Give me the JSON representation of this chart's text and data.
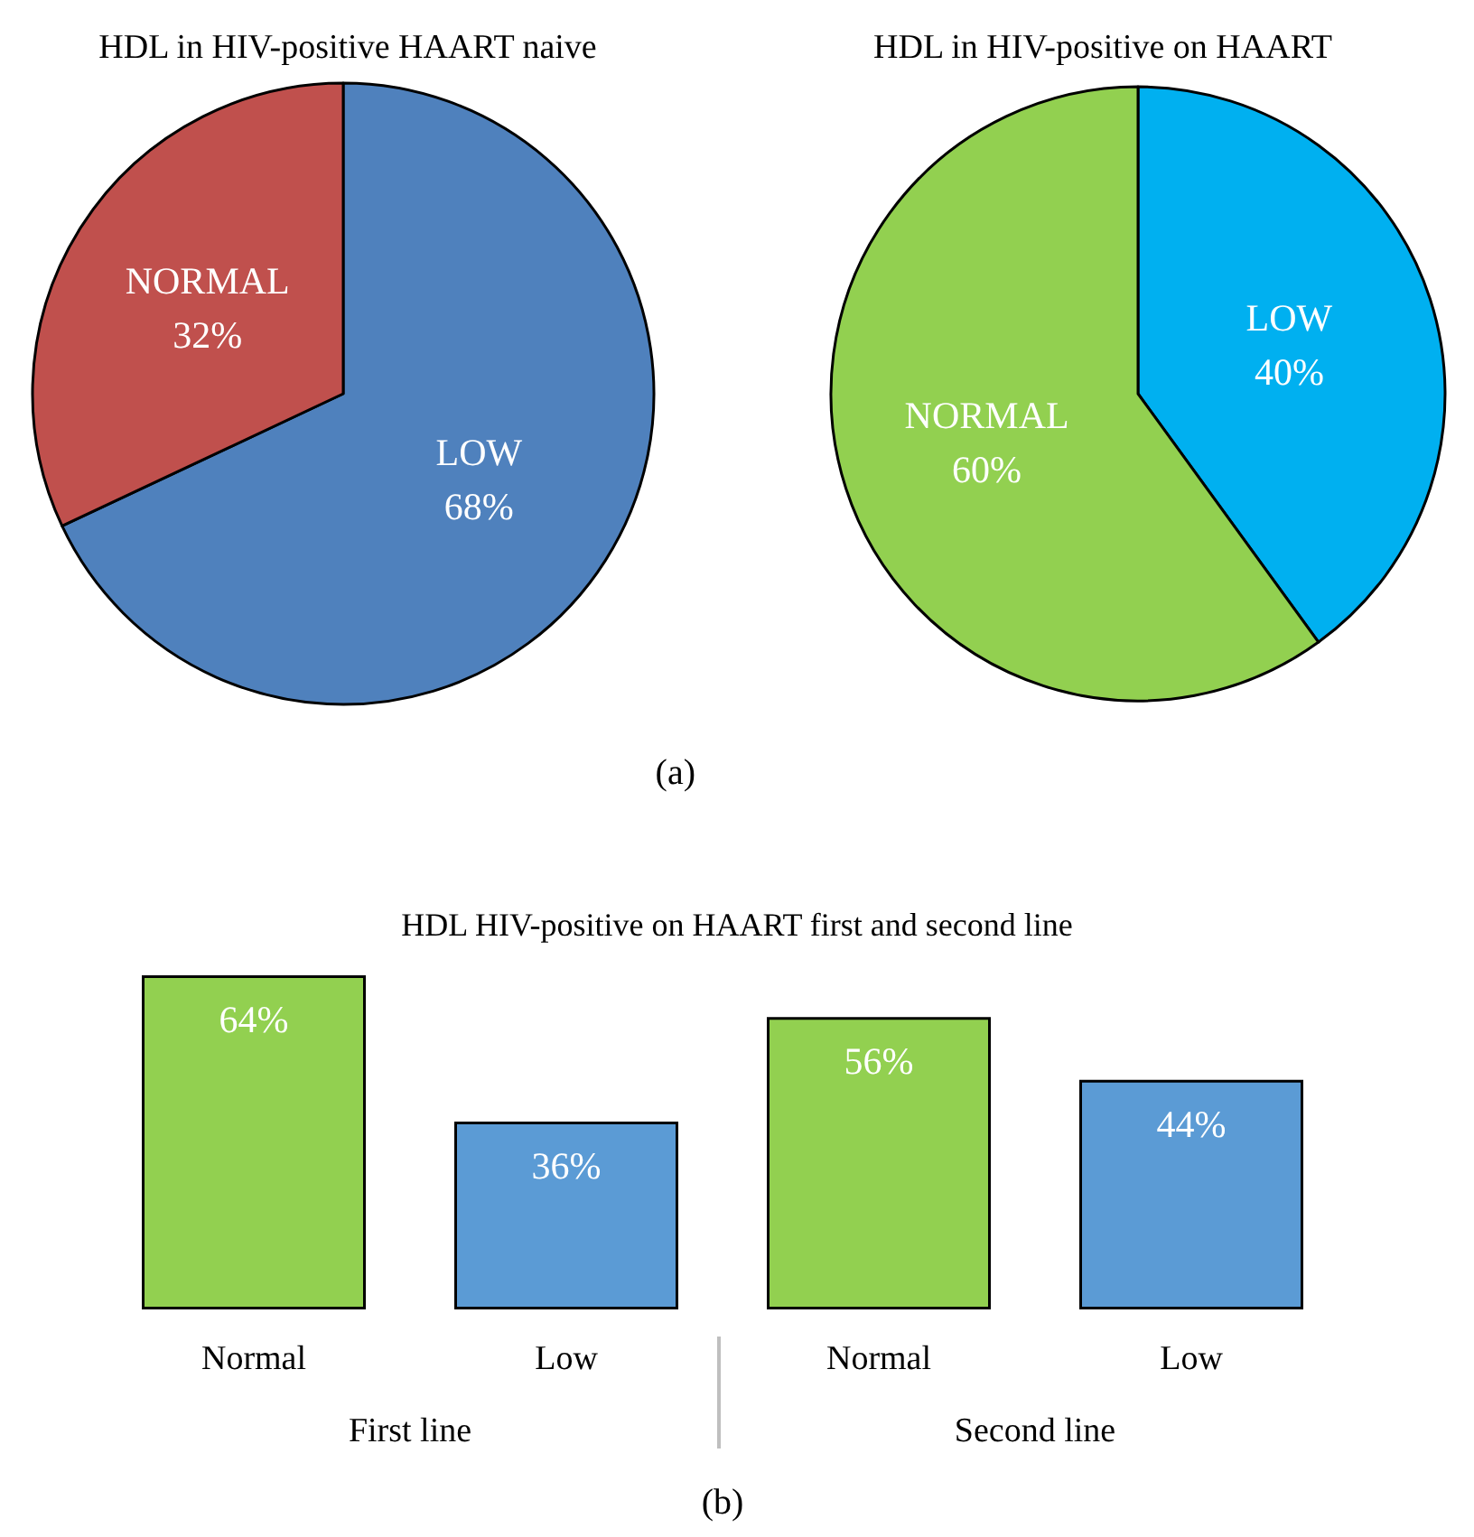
{
  "chart_data": [
    {
      "type": "pie",
      "title": "HDL in HIV-positive HAART naive",
      "categories": [
        "LOW",
        "NORMAL"
      ],
      "values": [
        68,
        32
      ],
      "colors": [
        "#4f81bd",
        "#c0504d"
      ],
      "value_labels": [
        "68%",
        "32%"
      ],
      "legend": false,
      "annotations": [
        "(a)"
      ]
    },
    {
      "type": "pie",
      "title": "HDL in HIV-positive on HAART",
      "categories": [
        "LOW",
        "NORMAL"
      ],
      "values": [
        40,
        60
      ],
      "colors": [
        "#00b0f0",
        "#92d050"
      ],
      "value_labels": [
        "40%",
        "60%"
      ],
      "legend": false
    },
    {
      "type": "bar",
      "title": "HDL HIV-positive on HAART first and second line",
      "categories": [
        "Normal",
        "Low",
        "Normal",
        "Low"
      ],
      "values": [
        64,
        36,
        56,
        44
      ],
      "colors": [
        "#92d050",
        "#5b9bd5",
        "#92d050",
        "#5b9bd5"
      ],
      "value_labels": [
        "64%",
        "36%",
        "56%",
        "44%"
      ],
      "legend": false,
      "annotations": [
        "First line",
        "Second line",
        "(b)"
      ]
    }
  ]
}
